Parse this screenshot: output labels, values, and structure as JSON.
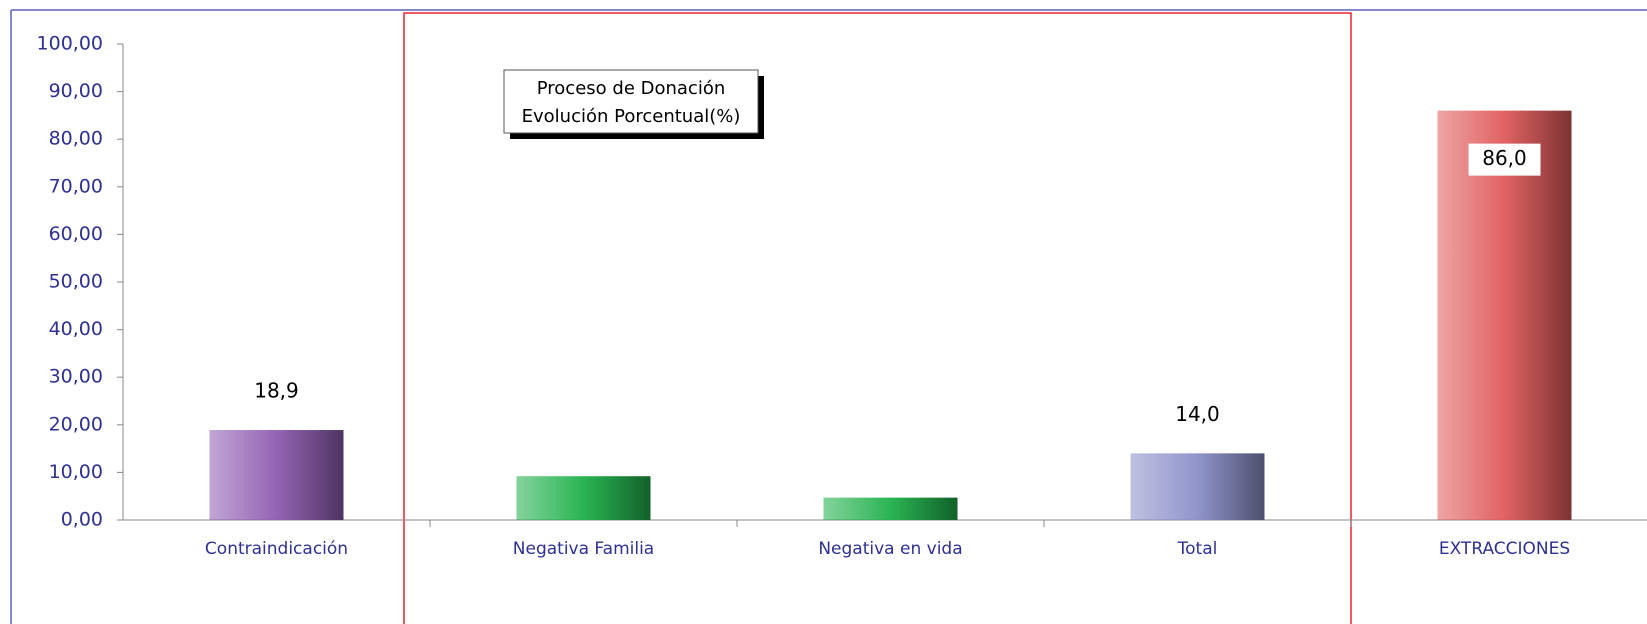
{
  "chart_data": {
    "type": "bar",
    "title": "Proceso de Donación",
    "subtitle": "Evolución Porcentual(%)",
    "categories": [
      "Contraindicación",
      "Negativa Familia",
      "Negativa en vida",
      "Total",
      "EXTRACCIONES"
    ],
    "values": [
      18.9,
      9.2,
      4.7,
      14.0,
      86.0
    ],
    "value_labels": [
      "18,9",
      null,
      null,
      "14,0",
      "86,0"
    ],
    "colors": [
      "#8e5cb0",
      "#1fb04a",
      "#1fb04a",
      "#8a8fc8",
      "#e05a5a"
    ],
    "ylim": [
      0,
      100
    ],
    "yticks": [
      {
        "value": 0,
        "label": "0,00"
      },
      {
        "value": 10,
        "label": "10,00"
      },
      {
        "value": 20,
        "label": "20,00"
      },
      {
        "value": 30,
        "label": "30,00"
      },
      {
        "value": 40,
        "label": "40,00"
      },
      {
        "value": 50,
        "label": "50,00"
      },
      {
        "value": 60,
        "label": "60,00"
      },
      {
        "value": 70,
        "label": "70,00"
      },
      {
        "value": 80,
        "label": "80,00"
      },
      {
        "value": 90,
        "label": "90,00"
      },
      {
        "value": 100,
        "label": "100,00"
      }
    ],
    "grid": false
  }
}
